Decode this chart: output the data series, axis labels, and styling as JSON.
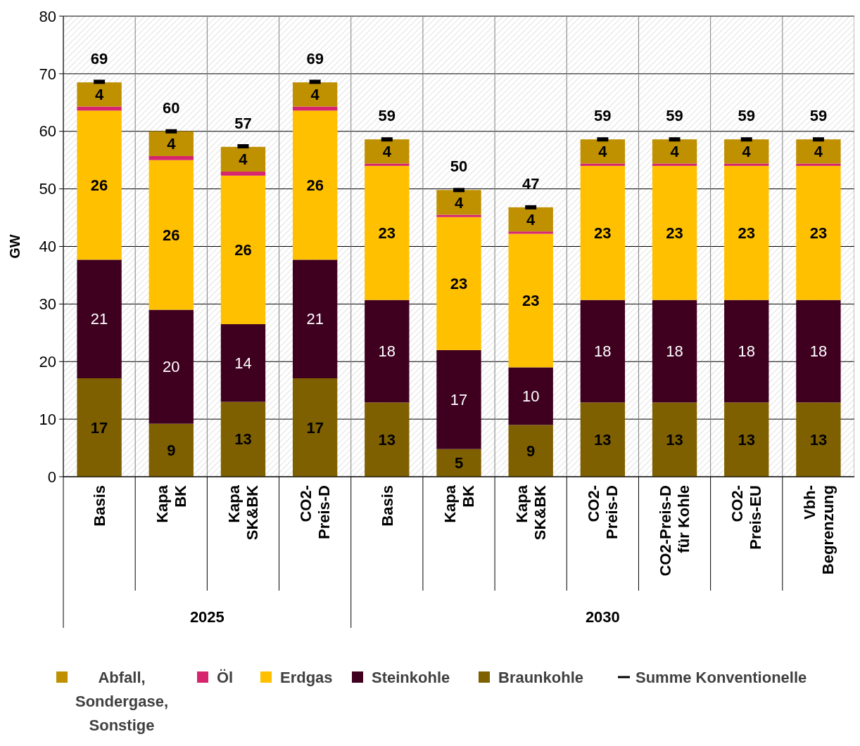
{
  "chart_data": {
    "type": "bar",
    "stacked": true,
    "ylabel": "GW",
    "categories": [
      "Basis",
      "Kapa\nBK",
      "Kapa\nSK&BK",
      "CO2-\nPreis-D",
      "Basis",
      "Kapa\nBK",
      "Kapa\nSK&BK",
      "CO2-\nPreis-D",
      "CO2-Preis-D\nfür Kohle",
      "CO2-\nPreis-EU",
      "Vbh-\nBegrenzung"
    ],
    "annotations": [
      "2025",
      "2030"
    ],
    "ylim": [
      0,
      80
    ],
    "yticks": [
      0,
      10,
      20,
      30,
      40,
      50,
      60,
      70,
      80
    ],
    "grid": true,
    "legend": "bottom",
    "series": [
      {
        "name": "Braunkohle",
        "color": "#7f6000",
        "values": [
          17.1,
          9.2,
          13.0,
          17.1,
          12.9,
          4.8,
          9.0,
          12.9,
          12.9,
          12.9,
          12.9
        ],
        "value_labels": [
          "17",
          "9",
          "13",
          "17",
          "13",
          "5",
          "9",
          "13",
          "13",
          "13",
          "13"
        ]
      },
      {
        "name": "Steinkohle",
        "color": "#3f0020",
        "values": [
          20.6,
          19.8,
          13.5,
          20.6,
          17.8,
          17.2,
          10.0,
          17.8,
          17.8,
          17.8,
          17.8
        ],
        "value_labels": [
          "21",
          "20",
          "14",
          "21",
          "18",
          "17",
          "10",
          "18",
          "18",
          "18",
          "18"
        ]
      },
      {
        "name": "Erdgas",
        "color": "#ffc000",
        "values": [
          25.9,
          26.0,
          25.8,
          25.9,
          23.3,
          23.1,
          23.2,
          23.3,
          23.3,
          23.3,
          23.3
        ],
        "value_labels": [
          "26",
          "26",
          "26",
          "26",
          "23",
          "23",
          "23",
          "23",
          "23",
          "23",
          "23"
        ]
      },
      {
        "name": "Öl",
        "color": "#d6246e",
        "values": [
          0.7,
          0.7,
          0.7,
          0.7,
          0.4,
          0.4,
          0.4,
          0.4,
          0.4,
          0.4,
          0.4
        ]
      },
      {
        "name": "Abfall,\nSondergase,\nSonstige",
        "color": "#bf9000",
        "values": [
          4.2,
          4.3,
          4.3,
          4.2,
          4.2,
          4.3,
          4.2,
          4.2,
          4.2,
          4.2,
          4.2
        ],
        "value_labels": [
          "4",
          "4",
          "4",
          "4",
          "4",
          "4",
          "4",
          "4",
          "4",
          "4",
          "4"
        ]
      },
      {
        "name": "Summe Konventionelle",
        "type": "scatter",
        "color": "#000000",
        "values": [
          68.6,
          60.0,
          57.4,
          68.6,
          58.6,
          49.8,
          46.8,
          58.6,
          58.6,
          58.6,
          58.6
        ]
      }
    ],
    "totals": [
      "69",
      "60",
      "57",
      "69",
      "59",
      "50",
      "47",
      "59",
      "59",
      "59",
      "59"
    ]
  }
}
